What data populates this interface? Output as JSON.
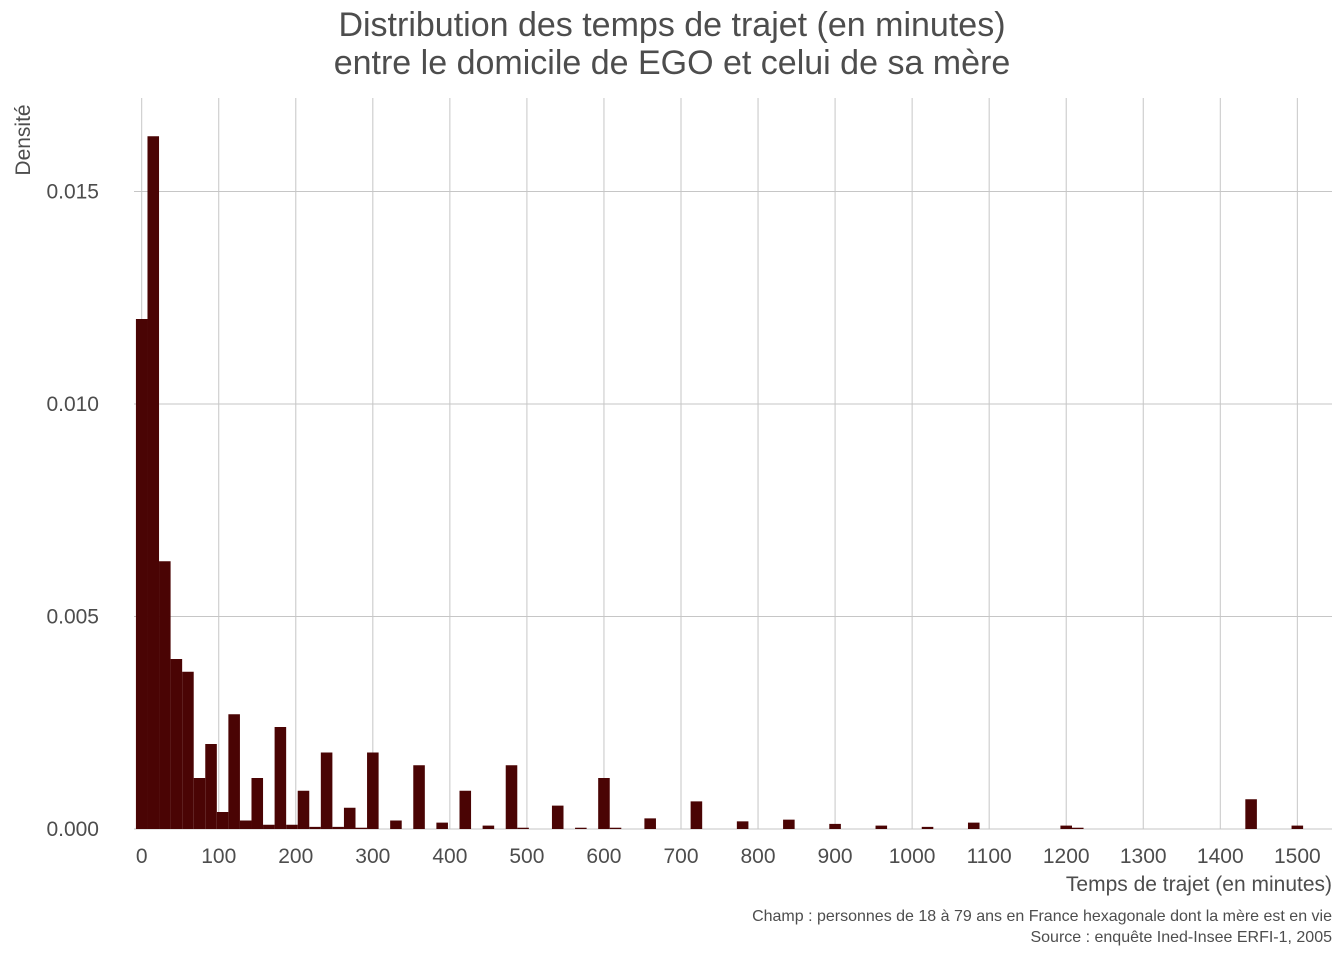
{
  "chart_data": {
    "type": "bar",
    "title_lines": [
      "Distribution des temps de trajet (en minutes)",
      "entre le domicile de EGO et celui de sa mère"
    ],
    "xlabel": "Temps de trajet (en minutes)",
    "ylabel": "Densité",
    "caption_lines": [
      "Champ : personnes de 18 à 79 ans en France hexagonale dont la mère est en vie",
      "Source : enquête Ined-Insee ERFI-1, 2005"
    ],
    "xlim": [
      -10,
      1545
    ],
    "ylim": [
      0,
      0.0172
    ],
    "x_ticks": [
      0,
      100,
      200,
      300,
      400,
      500,
      600,
      700,
      800,
      900,
      1000,
      1100,
      1200,
      1300,
      1400,
      1500
    ],
    "y_ticks": [
      0.0,
      0.005,
      0.01,
      0.015
    ],
    "y_tick_labels": [
      "0.000",
      "0.005",
      "0.010",
      "0.015"
    ],
    "grid": true,
    "bar_color": "#4a0404",
    "bin_width": 15,
    "bins": [
      {
        "start": -7.5,
        "density": 0.012
      },
      {
        "start": 7.5,
        "density": 0.0163
      },
      {
        "start": 22.5,
        "density": 0.0063
      },
      {
        "start": 37.5,
        "density": 0.004
      },
      {
        "start": 52.5,
        "density": 0.0037
      },
      {
        "start": 67.5,
        "density": 0.0012
      },
      {
        "start": 82.5,
        "density": 0.002
      },
      {
        "start": 97.5,
        "density": 0.0004
      },
      {
        "start": 112.5,
        "density": 0.0027
      },
      {
        "start": 127.5,
        "density": 0.0002
      },
      {
        "start": 142.5,
        "density": 0.0012
      },
      {
        "start": 157.5,
        "density": 0.0001
      },
      {
        "start": 172.5,
        "density": 0.0024
      },
      {
        "start": 187.5,
        "density": 0.0001
      },
      {
        "start": 202.5,
        "density": 0.0009
      },
      {
        "start": 217.5,
        "density": 5e-05
      },
      {
        "start": 232.5,
        "density": 0.0018
      },
      {
        "start": 247.5,
        "density": 5e-05
      },
      {
        "start": 262.5,
        "density": 0.0005
      },
      {
        "start": 277.5,
        "density": 3e-05
      },
      {
        "start": 292.5,
        "density": 0.0018
      },
      {
        "start": 322.5,
        "density": 0.0002
      },
      {
        "start": 352.5,
        "density": 0.0015
      },
      {
        "start": 382.5,
        "density": 0.00015
      },
      {
        "start": 412.5,
        "density": 0.0009
      },
      {
        "start": 442.5,
        "density": 8e-05
      },
      {
        "start": 472.5,
        "density": 0.0015
      },
      {
        "start": 487.5,
        "density": 3e-05
      },
      {
        "start": 532.5,
        "density": 0.00055
      },
      {
        "start": 562.5,
        "density": 3e-05
      },
      {
        "start": 592.5,
        "density": 0.0012
      },
      {
        "start": 607.5,
        "density": 3e-05
      },
      {
        "start": 652.5,
        "density": 0.00025
      },
      {
        "start": 712.5,
        "density": 0.00065
      },
      {
        "start": 772.5,
        "density": 0.00018
      },
      {
        "start": 832.5,
        "density": 0.00022
      },
      {
        "start": 892.5,
        "density": 0.00012
      },
      {
        "start": 952.5,
        "density": 8e-05
      },
      {
        "start": 1012.5,
        "density": 5e-05
      },
      {
        "start": 1072.5,
        "density": 0.00015
      },
      {
        "start": 1192.5,
        "density": 8e-05
      },
      {
        "start": 1207.5,
        "density": 3e-05
      },
      {
        "start": 1432.5,
        "density": 0.0007
      },
      {
        "start": 1492.5,
        "density": 8e-05
      }
    ]
  }
}
